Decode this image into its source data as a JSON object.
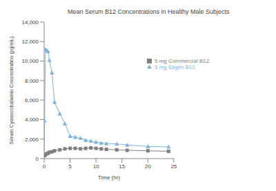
{
  "chart_data": {
    "type": "line",
    "title": "Mean Serum B12 Concentrations in Healthy Male Subjects",
    "x_label": "Time (hr)",
    "y_label": "Serum Cyanocobalamin Concentration (pg/mL)",
    "x": [
      0,
      0.083,
      0.25,
      0.5,
      0.75,
      1,
      1.5,
      2,
      3,
      4,
      5,
      6,
      7,
      8,
      9,
      10,
      11,
      12,
      14,
      16,
      20,
      24
    ],
    "series": [
      {
        "name": "5 mg Eligen B12",
        "color": "#7fb3dd",
        "marker": "triangle",
        "values": [
          400,
          3900,
          11200,
          11100,
          11000,
          10100,
          8800,
          5800,
          4600,
          3600,
          2300,
          2200,
          2100,
          1900,
          1800,
          1700,
          1600,
          1550,
          1500,
          1400,
          1250,
          1200
        ]
      },
      {
        "name": "5 mg Commercial B12",
        "color": "#7f7f7f",
        "marker": "square",
        "values": [
          300,
          350,
          400,
          500,
          550,
          650,
          700,
          800,
          900,
          1000,
          1050,
          1050,
          1000,
          1050,
          1100,
          1050,
          1000,
          950,
          900,
          850,
          800,
          750
        ]
      }
    ],
    "xlim": [
      0,
      25
    ],
    "xticks": [
      0,
      5,
      10,
      15,
      20,
      25
    ],
    "ylim": [
      0,
      14000
    ],
    "yticks": [
      0,
      {
        "value": 2000,
        "label": "2,000"
      },
      {
        "value": 4000,
        "label": "4,000"
      },
      {
        "value": 6000,
        "label": "6,000"
      },
      {
        "value": 8000,
        "label": "8,000"
      },
      {
        "value": 10000,
        "label": "10,000"
      },
      {
        "value": 12000,
        "label": "12,000"
      },
      {
        "value": 14000,
        "label": "14,000"
      }
    ],
    "grid": false,
    "legend": "upper right"
  }
}
